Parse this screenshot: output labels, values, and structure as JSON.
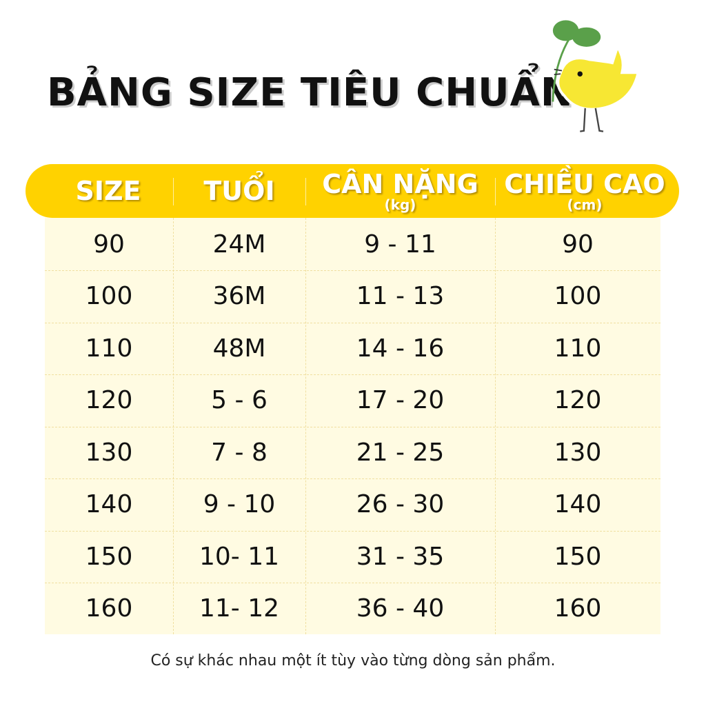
{
  "title": "BẢNG SIZE TIÊU CHUẨN",
  "header": [
    {
      "main": "SIZE",
      "sub": ""
    },
    {
      "main": "TUỔI",
      "sub": ""
    },
    {
      "main": "CÂN NẶNG",
      "sub": "(kg)"
    },
    {
      "main": "CHIỀU CAO",
      "sub": "(cm)"
    }
  ],
  "rows": [
    [
      "90",
      "24M",
      "9 - 11",
      "90"
    ],
    [
      "100",
      "36M",
      "11 - 13",
      "100"
    ],
    [
      "110",
      "48M",
      "14 - 16",
      "110"
    ],
    [
      "120",
      "5 - 6",
      "17 - 20",
      "120"
    ],
    [
      "130",
      "7 - 8",
      "21 - 25",
      "130"
    ],
    [
      "140",
      "9 - 10",
      "26 - 30",
      "140"
    ],
    [
      "150",
      "10- 11",
      "31 - 35",
      "150"
    ],
    [
      "160",
      "11- 12",
      "36 - 40",
      "160"
    ]
  ],
  "footer": "Có sự khác nhau một ít tùy vào từng dòng sản phẩm.",
  "colors": {
    "header": "#ffd200",
    "table_bg": "#fffbe2",
    "bird": "#f7e733",
    "leaf": "#5aa04a"
  },
  "icons": {
    "mascot": "yellow-bird-with-sprout"
  }
}
